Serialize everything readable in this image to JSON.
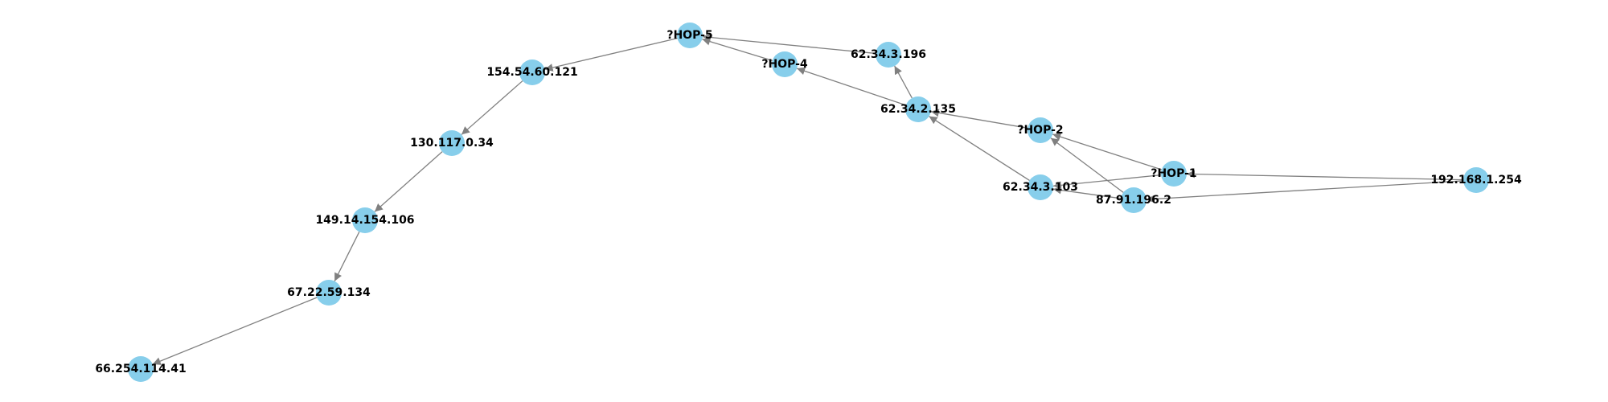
{
  "colors": {
    "node": "#87ceeb",
    "edge": "#808080",
    "label": "#000000",
    "background": "#ffffff"
  },
  "graph": {
    "nodes": [
      {
        "id": "n192",
        "label": "192.168.1.254"
      },
      {
        "id": "hop1",
        "label": "?HOP-1"
      },
      {
        "id": "n87",
        "label": "87.91.196.2"
      },
      {
        "id": "hop2",
        "label": "?HOP-2"
      },
      {
        "id": "n103",
        "label": "62.34.3.103"
      },
      {
        "id": "n135",
        "label": "62.34.2.135"
      },
      {
        "id": "n196",
        "label": "62.34.3.196"
      },
      {
        "id": "hop4",
        "label": "?HOP-4"
      },
      {
        "id": "hop5",
        "label": "?HOP-5"
      },
      {
        "id": "n154",
        "label": "154.54.60.121"
      },
      {
        "id": "n130",
        "label": "130.117.0.34"
      },
      {
        "id": "n149",
        "label": "149.14.154.106"
      },
      {
        "id": "n67",
        "label": "67.22.59.134"
      },
      {
        "id": "n66",
        "label": "66.254.114.41"
      }
    ],
    "edges": [
      {
        "from": "n192",
        "to": "hop1"
      },
      {
        "from": "n192",
        "to": "n87"
      },
      {
        "from": "hop1",
        "to": "hop2"
      },
      {
        "from": "hop1",
        "to": "n103"
      },
      {
        "from": "n87",
        "to": "hop2"
      },
      {
        "from": "n87",
        "to": "n103"
      },
      {
        "from": "hop2",
        "to": "n135"
      },
      {
        "from": "n103",
        "to": "n135"
      },
      {
        "from": "n135",
        "to": "n196"
      },
      {
        "from": "n135",
        "to": "hop4"
      },
      {
        "from": "n196",
        "to": "hop5"
      },
      {
        "from": "hop4",
        "to": "hop5"
      },
      {
        "from": "hop5",
        "to": "n154"
      },
      {
        "from": "n154",
        "to": "n130"
      },
      {
        "from": "n130",
        "to": "n149"
      },
      {
        "from": "n149",
        "to": "n67"
      },
      {
        "from": "n67",
        "to": "n66"
      }
    ]
  }
}
